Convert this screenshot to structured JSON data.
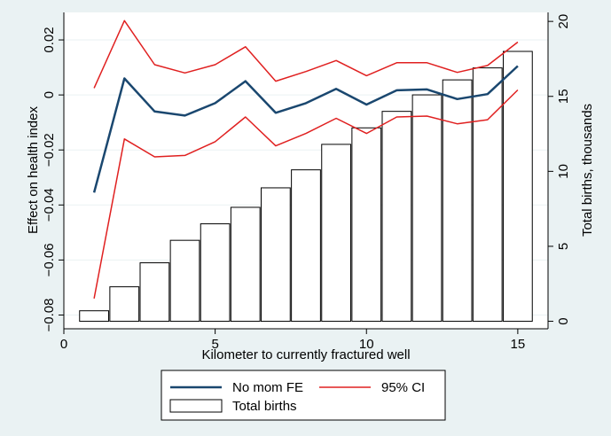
{
  "chart_data": {
    "type": "bar+line",
    "xlabel": "Kilometer to currently fractured well",
    "ylabel_left": "Effect on health index",
    "ylabel_right": "Total births, thousands",
    "xlim": [
      0,
      16
    ],
    "ylim_left": [
      -0.085,
      0.03
    ],
    "ylim_right": [
      -0.5,
      20.6
    ],
    "x_ticks": [
      0,
      5,
      10,
      15
    ],
    "y_ticks_left": [
      -0.08,
      -0.06,
      -0.04,
      -0.02,
      0,
      0.02
    ],
    "y_ticks_left_labels": [
      "−0.08",
      "−0.06",
      "−0.04",
      "−0.02",
      "0",
      "0.02"
    ],
    "y_ticks_right": [
      0,
      5,
      10,
      15,
      20
    ],
    "grid": "horizontal, left axis",
    "legend_position": "bottom",
    "x": [
      1,
      2,
      3,
      4,
      5,
      6,
      7,
      8,
      9,
      10,
      11,
      12,
      13,
      14,
      15
    ],
    "series": [
      {
        "name": "No mom FE",
        "type": "line",
        "axis": "left",
        "color": "#1a476f",
        "values": [
          -0.0355,
          0.006,
          -0.006,
          -0.0075,
          -0.003,
          0.005,
          -0.0065,
          -0.003,
          0.0022,
          -0.0035,
          0.0017,
          0.002,
          -0.0015,
          0.0003,
          0.0105
        ]
      },
      {
        "name": "95% CI",
        "type": "line",
        "axis": "left",
        "color": "#e02020",
        "bound": "upper",
        "values": [
          0.0025,
          0.027,
          0.011,
          0.008,
          0.011,
          0.0175,
          0.005,
          0.0085,
          0.0125,
          0.007,
          0.0117,
          0.0117,
          0.0082,
          0.0107,
          0.0192
        ]
      },
      {
        "name": "95% CI",
        "type": "line",
        "axis": "left",
        "color": "#e02020",
        "bound": "lower",
        "values": [
          -0.074,
          -0.016,
          -0.0225,
          -0.022,
          -0.017,
          -0.008,
          -0.0185,
          -0.014,
          -0.0085,
          -0.014,
          -0.008,
          -0.0077,
          -0.0105,
          -0.009,
          0.0018
        ]
      },
      {
        "name": "Total births",
        "type": "bar",
        "axis": "right",
        "color": "#ffffff",
        "values": [
          0.7,
          2.3,
          3.9,
          5.4,
          6.5,
          7.6,
          8.9,
          10.1,
          11.8,
          12.9,
          14.0,
          15.1,
          16.1,
          16.9,
          18.0
        ]
      }
    ],
    "legend": {
      "entries": [
        "No mom FE",
        "95% CI",
        "Total births"
      ]
    }
  }
}
